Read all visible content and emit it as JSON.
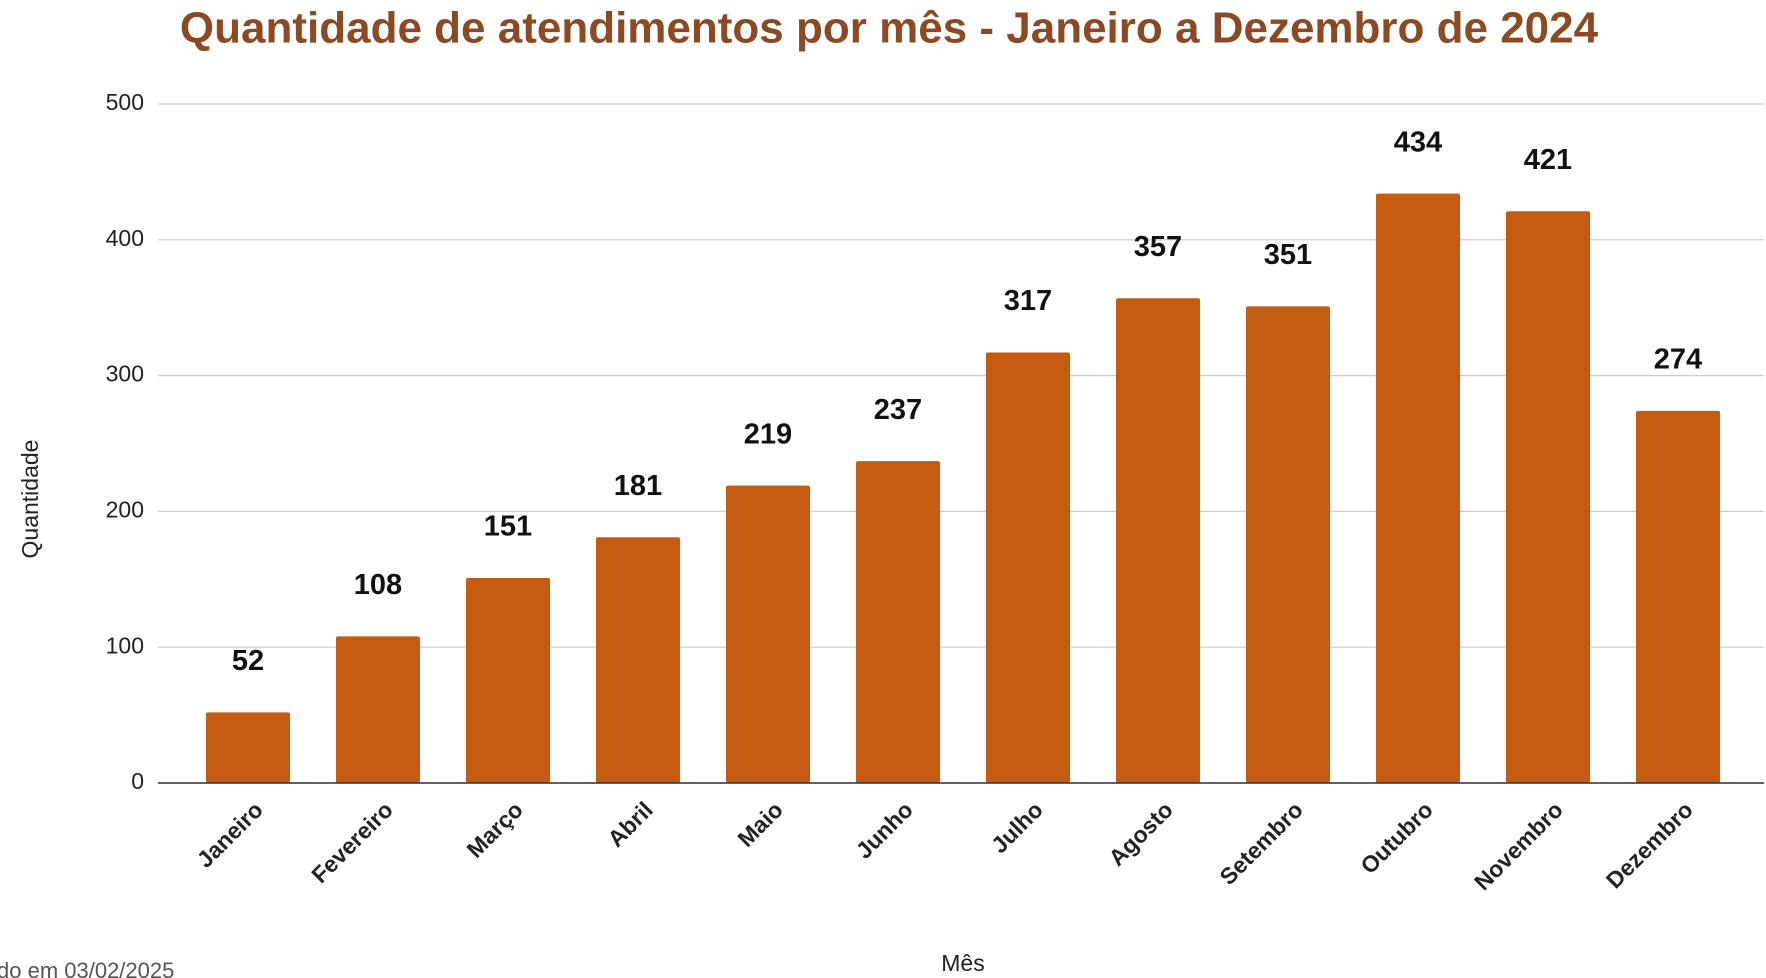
{
  "chart_data": {
    "type": "bar",
    "title": "Quantidade de atendimentos por mês - Janeiro a Dezembro de 2024",
    "x_label": "Mês",
    "y_label": "Quantidade",
    "footnote": "do em 03/02/2025",
    "categories": [
      "Janeiro",
      "Fevereiro",
      "Março",
      "Abril",
      "Maio",
      "Junho",
      "Julho",
      "Agosto",
      "Setembro",
      "Outubro",
      "Novembro",
      "Dezembro"
    ],
    "values": [
      52,
      108,
      151,
      181,
      219,
      237,
      317,
      357,
      351,
      434,
      421,
      274
    ],
    "color": "#c55a11",
    "ylim": [
      0,
      500
    ],
    "yticks": [
      0,
      100,
      200,
      300,
      400,
      500
    ],
    "grid": true
  }
}
